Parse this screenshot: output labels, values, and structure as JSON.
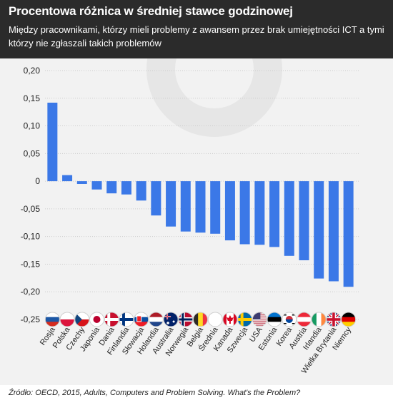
{
  "colors": {
    "header_bg": "#2b2b2b",
    "bar": "#3b78e7",
    "chart_bg": "#f2f2f2",
    "grid": "#cccccc"
  },
  "header": {
    "title": "Procentowa różnica w średniej stawce godzinowej",
    "subtitle": "Między pracownikami, którzy mieli problemy z awansem przez brak umiejętności ICT a tymi którzy nie zgłaszali takich problemów"
  },
  "source": "Źródło: OECD, 2015, Adults, Computers and Problem Solving. What's the Problem?",
  "chart_data": {
    "type": "bar",
    "categories": [
      "Rosja",
      "Polska",
      "Czechy",
      "Japonia",
      "Dania",
      "Finlandia",
      "Słowacja",
      "Holandia",
      "Australia",
      "Norwegia",
      "Belgia",
      "Średnia",
      "Kanada",
      "Szwecja",
      "USA",
      "Estonia",
      "Korea",
      "Austria",
      "Irlandia",
      "Wielka Brytania",
      "Niemcy"
    ],
    "values": [
      0.142,
      0.011,
      -0.005,
      -0.015,
      -0.022,
      -0.024,
      -0.035,
      -0.062,
      -0.082,
      -0.091,
      -0.093,
      -0.095,
      -0.107,
      -0.114,
      -0.115,
      -0.119,
      -0.135,
      -0.143,
      -0.176,
      -0.181,
      -0.191
    ],
    "flags": [
      "russia-flag-icon",
      "poland-flag-icon",
      "czechia-flag-icon",
      "japan-flag-icon",
      "denmark-flag-icon",
      "finland-flag-icon",
      "slovakia-flag-icon",
      "netherlands-flag-icon",
      "australia-flag-icon",
      "norway-flag-icon",
      "belgium-flag-icon",
      "average-blank-icon",
      "canada-flag-icon",
      "sweden-flag-icon",
      "usa-flag-icon",
      "estonia-flag-icon",
      "south-korea-flag-icon",
      "austria-flag-icon",
      "ireland-flag-icon",
      "uk-flag-icon",
      "germany-flag-icon"
    ],
    "yticks": [
      "0,20",
      "0,15",
      "0,10",
      "0,05",
      "0",
      "-0,05",
      "-0,10",
      "-0,15",
      "-0,20",
      "-0,25"
    ],
    "ytick_values": [
      0.2,
      0.15,
      0.1,
      0.05,
      0,
      -0.05,
      -0.1,
      -0.15,
      -0.2,
      -0.25
    ],
    "ylim": [
      -0.25,
      0.2
    ],
    "grid": true,
    "title": "",
    "xlabel": "",
    "ylabel": ""
  }
}
